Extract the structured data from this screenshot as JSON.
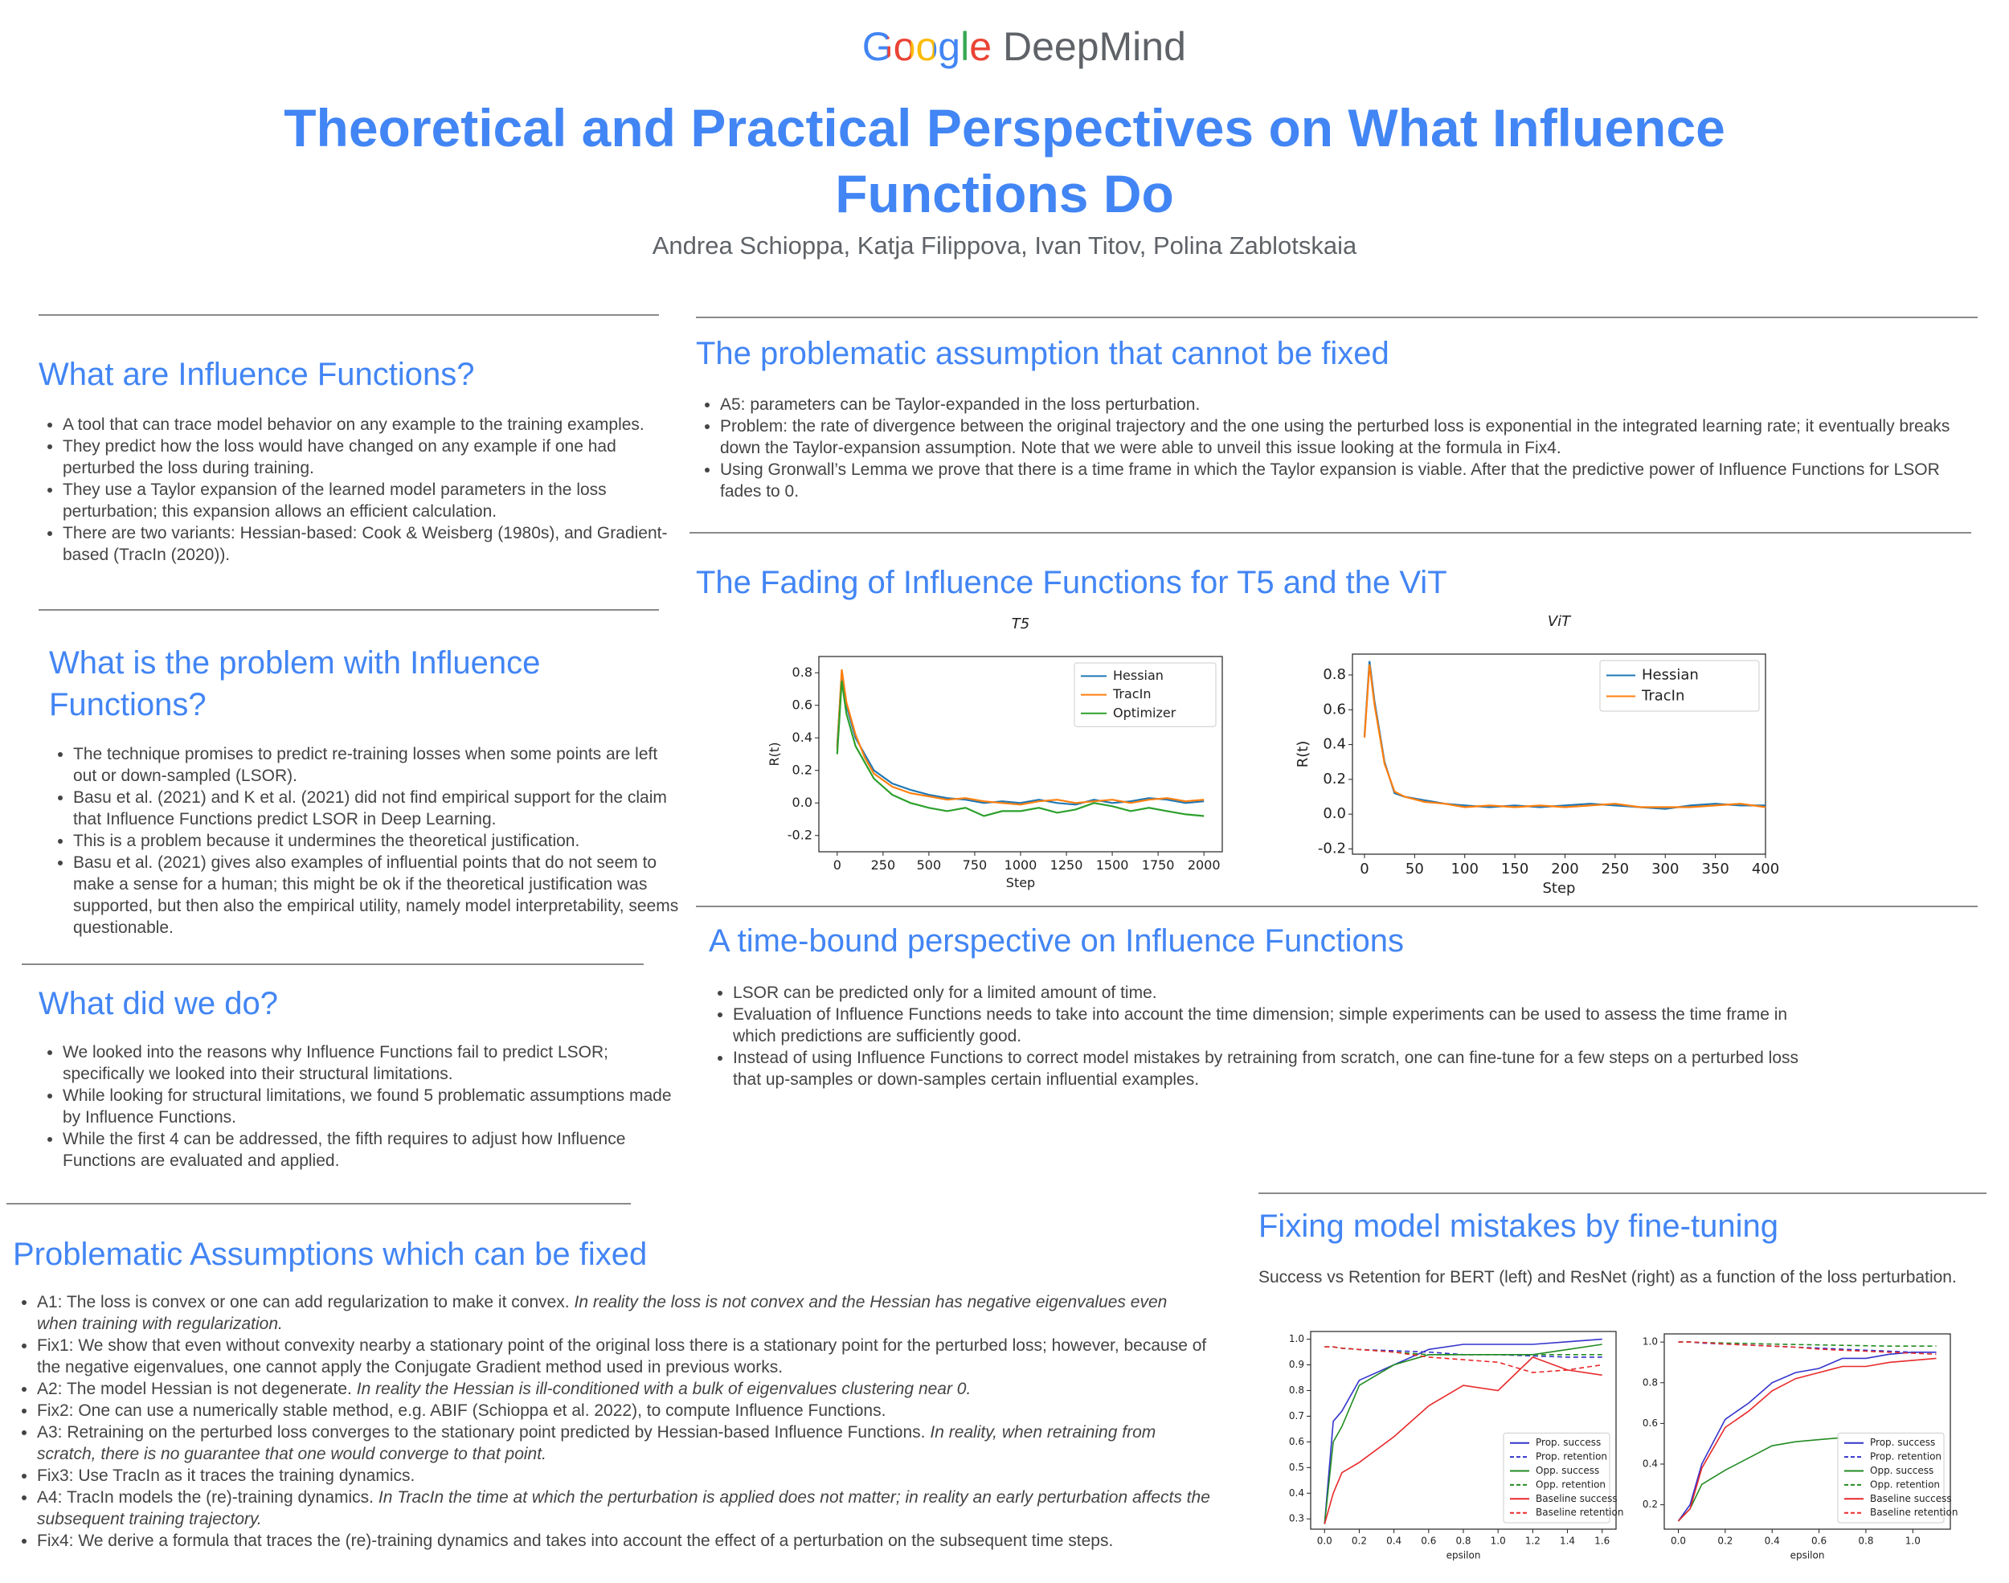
{
  "header": {
    "logo_google": "Google",
    "logo_deepmind": "DeepMind",
    "title": "Theoretical and Practical Perspectives on What Influence Functions Do",
    "authors": "Andrea Schioppa, Katja Filippova, Ivan Titov, Polina Zablotskaia"
  },
  "sections": [
    {
      "title": "What are Influence Functions?",
      "items": [
        "A tool that can trace model behavior on any example to the training examples.",
        "They predict how the loss would have changed on any example if one had perturbed the loss during training.",
        "They use a Taylor expansion of the learned model parameters in the loss perturbation; this expansion allows an efficient calculation.",
        "There are two variants: Hessian-based: Cook & Weisberg (1980s), and Gradient-based (TracIn (2020))."
      ]
    },
    {
      "title": "What is the problem with Influence Functions?",
      "items": [
        "The technique promises to predict re-training losses when some points are left out or down-sampled (LSOR).",
        "Basu et al. (2021) and K et al. (2021) did not find empirical support for the claim that Influence Functions predict LSOR in Deep Learning.",
        "This is a problem because it undermines the theoretical justification.",
        "Basu et al. (2021) gives also examples of influential points that do not seem to make a sense for a human; this might be ok if the theoretical justification was supported, but then also the empirical utility, namely model interpretability, seems questionable."
      ]
    },
    {
      "title": "What did we do?",
      "items": [
        "We looked into the reasons why Influence Functions fail to predict LSOR; specifically we looked into their structural limitations.",
        "While looking for structural limitations, we found 5 problematic assumptions made by Influence Functions.",
        "While the first 4 can be addressed, the fifth requires to adjust how Influence Functions are evaluated and applied."
      ]
    },
    {
      "title": "Problematic Assumptions which can be fixed",
      "items": [
        {
          "text": "A1: The loss is convex or one can add regularization to make it convex.",
          "emphasis": "In reality the loss is not convex and the Hessian has negative eigenvalues even when training with regularization."
        },
        "Fix1: We show that even without convexity nearby a stationary point of the original loss there is a stationary point for the perturbed loss; however, because of the negative eigenvalues, one cannot apply the Conjugate Gradient method used in previous works.",
        {
          "text": "A2: The model Hessian is not degenerate.",
          "emphasis": "In reality the Hessian is ill-conditioned with a bulk of eigenvalues clustering near 0."
        },
        "Fix2: One can use a numerically stable method, e.g. ABIF (Schioppa et al. 2022), to compute Influence Functions.",
        {
          "text": "A3: Retraining on the perturbed loss converges to the stationary point predicted by Hessian-based Influence Functions.",
          "emphasis": "In reality, when retraining from scratch, there is no guarantee that one would converge to that point."
        },
        "Fix3: Use TracIn as it traces the training dynamics.",
        {
          "text": "A4: TracIn models the (re)-training dynamics.",
          "emphasis": "In TracIn the time at which the perturbation is applied does not matter; in reality an early perturbation affects the subsequent training trajectory."
        },
        "Fix4: We derive a formula that traces the (re)-training dynamics and takes into account the effect of a perturbation on the subsequent time steps."
      ]
    },
    {
      "title": "The problematic assumption that cannot be fixed",
      "items": [
        "A5: parameters can be Taylor-expanded in the loss perturbation.",
        "Problem: the rate of divergence between the original trajectory and the one using the perturbed loss is exponential in the integrated learning rate; it eventually breaks down the Taylor-expansion assumption. Note that we were able to unveil this issue looking at the formula in Fix4.",
        "Using Gronwall’s Lemma we prove that there is a time frame in which the Taylor expansion is viable. After that the predictive power of Influence Functions for LSOR fades to 0."
      ]
    },
    {
      "title": "The Fading of Influence Functions for T5 and the ViT"
    },
    {
      "title": "A time-bound perspective on Influence Functions",
      "items": [
        "LSOR can be predicted only for a limited amount of time.",
        "Evaluation of Influence Functions needs to take into account the time dimension; simple experiments can be used to assess the time frame in which predictions are sufficiently good.",
        "Instead of using Influence Functions to correct model mistakes by retraining from scratch, one can fine-tune for a few steps on a perturbed loss that up-samples or down-samples certain influential examples."
      ]
    },
    {
      "title": "Fixing model mistakes by fine-tuning",
      "description": "Success vs Retention for BERT (left) and ResNet (right) as a function of the loss perturbation."
    }
  ],
  "chart_data": [
    {
      "type": "line",
      "title": "T5",
      "x_label": "Step",
      "y_label": "R(t)",
      "legend": "upper right",
      "x": [
        0,
        25,
        50,
        100,
        150,
        200,
        300,
        400,
        500,
        600,
        700,
        800,
        900,
        1000,
        1100,
        1200,
        1300,
        1400,
        1500,
        1600,
        1700,
        1800,
        1900,
        2000
      ],
      "xlim": [
        -100,
        2100
      ],
      "xticks": [
        0,
        250,
        500,
        750,
        1000,
        1250,
        1500,
        1750,
        2000
      ],
      "ylim": [
        -0.3,
        0.9
      ],
      "yticks": [
        -0.2,
        {
          "value": 0,
          "label": "0.0"
        },
        0.2,
        0.4,
        0.6,
        0.8
      ],
      "series": [
        {
          "name": "Hessian",
          "color": "#1f77b4",
          "values": [
            0.35,
            0.8,
            0.6,
            0.4,
            0.3,
            0.2,
            0.12,
            0.08,
            0.05,
            0.03,
            0.02,
            0.0,
            0.01,
            0.0,
            0.02,
            0.0,
            -0.01,
            0.02,
            0.0,
            0.01,
            0.03,
            0.02,
            0.0,
            0.01
          ]
        },
        {
          "name": "TracIn",
          "color": "#ff7f0e",
          "values": [
            0.33,
            0.82,
            0.62,
            0.42,
            0.28,
            0.18,
            0.1,
            0.06,
            0.04,
            0.02,
            0.03,
            0.01,
            0.0,
            -0.01,
            0.01,
            0.02,
            0.0,
            0.01,
            0.02,
            0.0,
            0.02,
            0.03,
            0.01,
            0.02
          ]
        },
        {
          "name": "Optimizer",
          "color": "#2ca02c",
          "values": [
            0.3,
            0.75,
            0.55,
            0.35,
            0.25,
            0.15,
            0.05,
            0.0,
            -0.03,
            -0.05,
            -0.03,
            -0.08,
            -0.05,
            -0.05,
            -0.03,
            -0.06,
            -0.04,
            0.0,
            -0.02,
            -0.05,
            -0.03,
            -0.05,
            -0.07,
            -0.08
          ]
        }
      ]
    },
    {
      "type": "line",
      "title": "ViT",
      "x_label": "Step",
      "y_label": "R(t)",
      "legend": "upper right",
      "x": [
        0,
        5,
        10,
        20,
        30,
        40,
        60,
        80,
        100,
        125,
        150,
        175,
        200,
        225,
        250,
        275,
        300,
        325,
        350,
        375,
        400
      ],
      "xlim": [
        -12,
        400
      ],
      "xticks": [
        0,
        50,
        100,
        150,
        200,
        250,
        300,
        350,
        400
      ],
      "ylim": [
        -0.23,
        0.92
      ],
      "yticks": [
        -0.2,
        {
          "value": 0,
          "label": "0.0"
        },
        0.2,
        0.4,
        0.6,
        0.8
      ],
      "series": [
        {
          "name": "Hessian",
          "color": "#1f77b4",
          "values": [
            0.45,
            0.88,
            0.65,
            0.3,
            0.12,
            0.1,
            0.08,
            0.06,
            0.05,
            0.04,
            0.05,
            0.04,
            0.05,
            0.06,
            0.05,
            0.04,
            0.03,
            0.05,
            0.06,
            0.05,
            0.05
          ]
        },
        {
          "name": "TracIn",
          "color": "#ff7f0e",
          "values": [
            0.44,
            0.86,
            0.63,
            0.29,
            0.13,
            0.1,
            0.07,
            0.06,
            0.04,
            0.05,
            0.04,
            0.05,
            0.04,
            0.05,
            0.06,
            0.04,
            0.04,
            0.04,
            0.05,
            0.06,
            0.04
          ]
        }
      ]
    },
    {
      "type": "line",
      "x_label": "epsilon",
      "legend": "lower right",
      "x": [
        0,
        0.05,
        0.1,
        0.2,
        0.4,
        0.6,
        0.8,
        1.0,
        1.2,
        1.4,
        1.6
      ],
      "xlim": [
        -0.08,
        1.68
      ],
      "xticks": [
        {
          "value": 0,
          "label": "0.0"
        },
        0.2,
        0.4,
        0.6,
        0.8,
        {
          "value": 1,
          "label": "1.0"
        },
        1.2,
        1.4,
        1.6
      ],
      "ylim": [
        0.26,
        1.03
      ],
      "yticks": [
        0.3,
        0.4,
        0.5,
        0.6,
        0.7,
        0.8,
        0.9,
        {
          "value": 1,
          "label": "1.0"
        }
      ],
      "series": [
        {
          "name": "Prop. success",
          "color": "#3333cc",
          "linestyle": "solid",
          "values": [
            0.28,
            0.68,
            0.72,
            0.84,
            0.9,
            0.96,
            0.98,
            0.98,
            0.98,
            0.99,
            1.0
          ]
        },
        {
          "name": "Prop. retention",
          "color": "#3333cc",
          "linestyle": "dashed",
          "values": [
            0.97,
            0.97,
            0.965,
            0.96,
            0.955,
            0.95,
            0.94,
            0.94,
            0.935,
            0.93,
            0.93
          ]
        },
        {
          "name": "Opp. success",
          "color": "#228b22",
          "linestyle": "solid",
          "values": [
            0.28,
            0.6,
            0.66,
            0.82,
            0.9,
            0.94,
            0.94,
            0.94,
            0.94,
            0.96,
            0.98
          ]
        },
        {
          "name": "Opp. retention",
          "color": "#228b22",
          "linestyle": "dashed",
          "values": [
            0.97,
            0.97,
            0.965,
            0.96,
            0.95,
            0.94,
            0.94,
            0.94,
            0.94,
            0.94,
            0.94
          ]
        },
        {
          "name": "Baseline success",
          "color": "#e8292b",
          "linestyle": "solid",
          "values": [
            0.28,
            0.4,
            0.48,
            0.52,
            0.62,
            0.74,
            0.82,
            0.8,
            0.93,
            0.88,
            0.86
          ]
        },
        {
          "name": "Baseline retention",
          "color": "#e8292b",
          "linestyle": "dashed",
          "values": [
            0.97,
            0.97,
            0.965,
            0.96,
            0.95,
            0.93,
            0.92,
            0.91,
            0.87,
            0.88,
            0.9
          ]
        }
      ]
    },
    {
      "type": "line",
      "x_label": "epsilon",
      "legend": "lower right",
      "x": [
        0,
        0.05,
        0.1,
        0.2,
        0.3,
        0.4,
        0.5,
        0.6,
        0.7,
        0.8,
        0.9,
        1.0,
        1.1
      ],
      "xlim": [
        -0.06,
        1.16
      ],
      "xticks": [
        {
          "value": 0,
          "label": "0.0"
        },
        0.2,
        0.4,
        0.6,
        0.8,
        {
          "value": 1,
          "label": "1.0"
        }
      ],
      "ylim": [
        0.08,
        1.04
      ],
      "yticks": [
        0.2,
        0.4,
        0.6,
        0.8,
        {
          "value": 1,
          "label": "1.0"
        }
      ],
      "series": [
        {
          "name": "Prop. success",
          "color": "#3333cc",
          "linestyle": "solid",
          "values": [
            0.12,
            0.2,
            0.4,
            0.62,
            0.7,
            0.8,
            0.85,
            0.87,
            0.92,
            0.92,
            0.94,
            0.95,
            0.95
          ]
        },
        {
          "name": "Prop. retention",
          "color": "#3333cc",
          "linestyle": "dashed",
          "values": [
            1.0,
            1.0,
            0.995,
            0.99,
            0.985,
            0.98,
            0.975,
            0.97,
            0.965,
            0.96,
            0.955,
            0.95,
            0.95
          ]
        },
        {
          "name": "Opp. success",
          "color": "#228b22",
          "linestyle": "solid",
          "values": [
            0.12,
            0.18,
            0.3,
            0.37,
            0.43,
            0.49,
            0.51,
            0.52,
            0.53,
            0.54,
            0.55,
            0.55,
            0.55
          ]
        },
        {
          "name": "Opp. retention",
          "color": "#228b22",
          "linestyle": "dashed",
          "values": [
            1.0,
            1.0,
            0.998,
            0.995,
            0.993,
            0.99,
            0.988,
            0.986,
            0.984,
            0.982,
            0.98,
            0.98,
            0.98
          ]
        },
        {
          "name": "Baseline success",
          "color": "#e8292b",
          "linestyle": "solid",
          "values": [
            0.12,
            0.18,
            0.38,
            0.58,
            0.66,
            0.76,
            0.82,
            0.85,
            0.88,
            0.88,
            0.9,
            0.91,
            0.92
          ]
        },
        {
          "name": "Baseline retention",
          "color": "#e8292b",
          "linestyle": "dashed",
          "values": [
            1.0,
            1.0,
            0.998,
            0.99,
            0.985,
            0.98,
            0.975,
            0.965,
            0.96,
            0.955,
            0.95,
            0.945,
            0.94
          ]
        }
      ]
    }
  ]
}
